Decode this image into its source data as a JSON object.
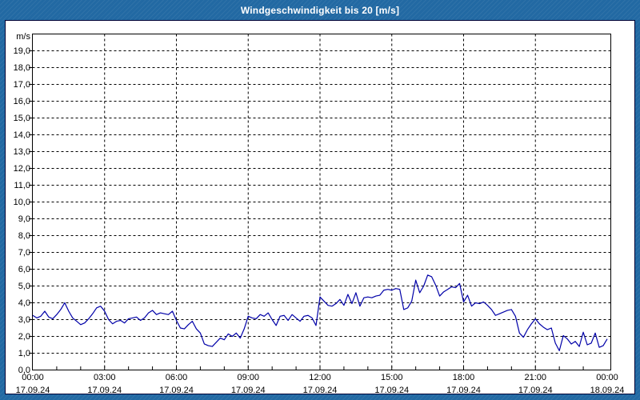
{
  "window": {
    "title": "Windgeschwindigkeit bis 20 [m/s]"
  },
  "colors": {
    "frame_blue": "#2269A3",
    "panel_background": "#FFFFFF",
    "panel_border": "#000033",
    "plot_frame": "#000000",
    "gridline": "#000000",
    "line": "#0000A8",
    "title_text": "#FFFFFF",
    "tick_text": "#000000"
  },
  "chart_data": {
    "type": "line",
    "title": "Windgeschwindigkeit bis 20 [m/s]",
    "ylabel": "m/s",
    "xlabel": "",
    "ylim": [
      0,
      20
    ],
    "y_tick_step": 1,
    "y_tick_labels": [
      "0,0",
      "1,0",
      "2,0",
      "3,0",
      "4,0",
      "5,0",
      "6,0",
      "7,0",
      "8,0",
      "9,0",
      "10,0",
      "11,0",
      "12,0",
      "13,0",
      "14,0",
      "15,0",
      "16,0",
      "17,0",
      "18,0",
      "19,0"
    ],
    "x_range_hours": [
      0,
      24
    ],
    "x_ticks": [
      {
        "hour": 0,
        "time": "00:00",
        "date": "17.09.24"
      },
      {
        "hour": 3,
        "time": "03:00",
        "date": "17.09.24"
      },
      {
        "hour": 6,
        "time": "06:00",
        "date": "17.09.24"
      },
      {
        "hour": 9,
        "time": "09:00",
        "date": "17.09.24"
      },
      {
        "hour": 12,
        "time": "12:00",
        "date": "17.09.24"
      },
      {
        "hour": 15,
        "time": "15:00",
        "date": "17.09.24"
      },
      {
        "hour": 18,
        "time": "18:00",
        "date": "17.09.24"
      },
      {
        "hour": 21,
        "time": "21:00",
        "date": "17.09.24"
      },
      {
        "hour": 24,
        "time": "00:00",
        "date": "18.09.24"
      }
    ],
    "grid": true,
    "legend": false,
    "sample_interval_minutes": 10,
    "series_name": "Windgeschwindigkeit",
    "values": [
      3.25,
      3.1,
      3.2,
      3.5,
      3.15,
      3.05,
      3.3,
      3.6,
      4.0,
      3.5,
      3.1,
      2.9,
      2.7,
      2.8,
      3.05,
      3.35,
      3.7,
      3.8,
      3.5,
      3.0,
      2.75,
      2.9,
      2.95,
      2.8,
      3.05,
      3.1,
      3.15,
      2.95,
      3.1,
      3.4,
      3.55,
      3.3,
      3.4,
      3.35,
      3.3,
      3.5,
      2.95,
      2.5,
      2.45,
      2.7,
      2.9,
      2.45,
      2.2,
      1.55,
      1.45,
      1.4,
      1.65,
      1.9,
      1.8,
      2.15,
      2.0,
      2.2,
      1.9,
      2.45,
      3.2,
      3.1,
      3.05,
      3.3,
      3.2,
      3.4,
      3.0,
      2.65,
      3.2,
      3.25,
      2.95,
      3.3,
      3.1,
      2.9,
      3.2,
      3.25,
      3.1,
      2.65,
      4.35,
      4.1,
      3.85,
      3.8,
      3.95,
      4.2,
      3.85,
      4.5,
      3.95,
      4.6,
      3.8,
      4.3,
      4.35,
      4.3,
      4.4,
      4.45,
      4.75,
      4.8,
      4.75,
      4.85,
      4.8,
      3.6,
      3.7,
      4.1,
      5.35,
      4.6,
      5.0,
      5.65,
      5.55,
      5.05,
      4.4,
      4.65,
      4.8,
      4.95,
      4.9,
      5.15,
      4.05,
      4.45,
      3.8,
      4.0,
      3.95,
      4.05,
      3.85,
      3.6,
      3.25,
      3.35,
      3.45,
      3.55,
      3.6,
      3.2,
      2.2,
      1.95,
      2.4,
      2.75,
      3.05,
      2.75,
      2.55,
      2.4,
      2.5,
      1.6,
      1.15,
      2.05,
      1.85,
      1.55,
      1.7,
      1.4,
      2.25,
      1.5,
      1.6,
      2.2,
      1.35,
      1.45,
      1.85
    ]
  }
}
